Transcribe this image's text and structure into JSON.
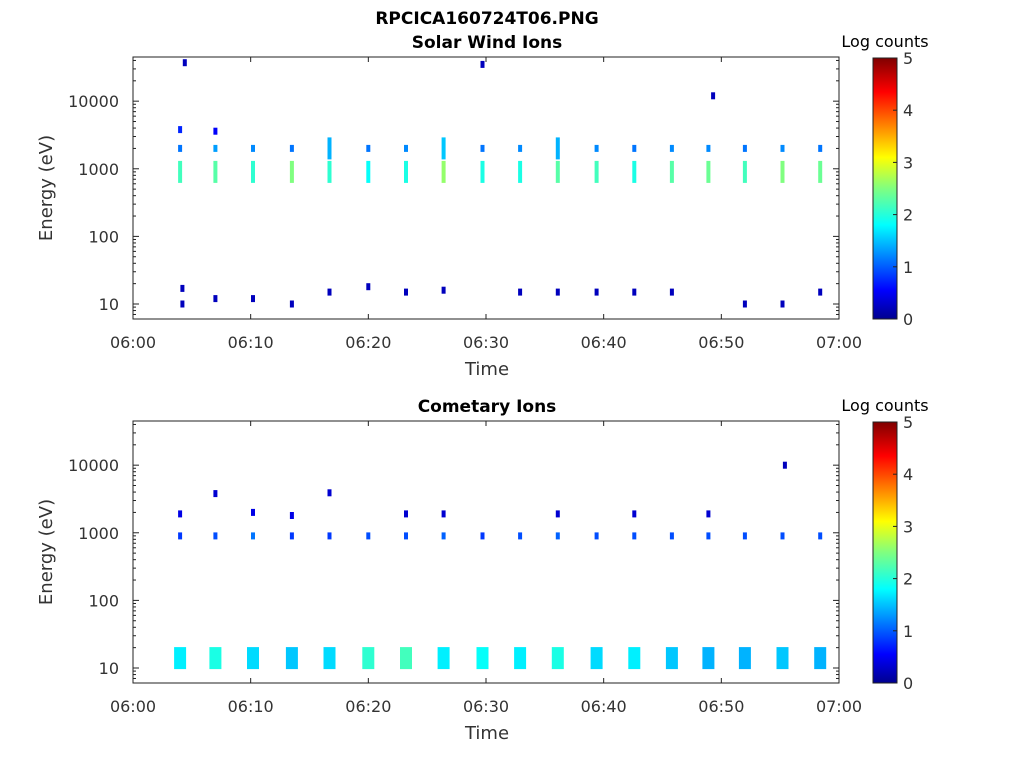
{
  "figure": {
    "title": "RPCICA160724T06.PNG"
  },
  "chart_data": [
    {
      "type": "heatmap",
      "title": "Solar Wind Ions",
      "xlabel": "Time",
      "ylabel": "Energy (eV)",
      "yscale": "log",
      "ylim": [
        6,
        45000
      ],
      "xlim": [
        "06:00",
        "07:00"
      ],
      "xticks": [
        "06:00",
        "06:10",
        "06:20",
        "06:30",
        "06:40",
        "06:50",
        "07:00"
      ],
      "yticks": [
        "10",
        "100",
        "1000",
        "10000"
      ],
      "colorbar": {
        "label": "Log counts",
        "range": [
          0,
          5
        ],
        "ticks": [
          "0",
          "1",
          "2",
          "3",
          "4",
          "5"
        ],
        "colormap": "jet"
      },
      "grid": false,
      "cells": [
        {
          "t": 4.0,
          "e": 900,
          "v": 2.2
        },
        {
          "t": 4.0,
          "e": 2000,
          "v": 1.2
        },
        {
          "t": 4.0,
          "e": 3800,
          "v": 0.8
        },
        {
          "t": 4.2,
          "e": 10,
          "v": 0.3
        },
        {
          "t": 4.2,
          "e": 17,
          "v": 0.3
        },
        {
          "t": 4.4,
          "e": 37000,
          "v": 0.3
        },
        {
          "t": 7.0,
          "e": 900,
          "v": 2.3
        },
        {
          "t": 7.0,
          "e": 2000,
          "v": 1.4
        },
        {
          "t": 7.0,
          "e": 3600,
          "v": 0.6
        },
        {
          "t": 7.0,
          "e": 12,
          "v": 0.3
        },
        {
          "t": 10.2,
          "e": 900,
          "v": 2.1
        },
        {
          "t": 10.2,
          "e": 2000,
          "v": 1.3
        },
        {
          "t": 10.2,
          "e": 12,
          "v": 0.3
        },
        {
          "t": 13.5,
          "e": 900,
          "v": 2.5
        },
        {
          "t": 13.5,
          "e": 2000,
          "v": 1.2
        },
        {
          "t": 13.5,
          "e": 10,
          "v": 0.3
        },
        {
          "t": 16.7,
          "e": 900,
          "v": 2.1
        },
        {
          "t": 16.7,
          "e": 2000,
          "v": 1.5
        },
        {
          "t": 16.7,
          "e": 15,
          "v": 0.3
        },
        {
          "t": 20.0,
          "e": 900,
          "v": 1.9
        },
        {
          "t": 20.0,
          "e": 2000,
          "v": 1.2
        },
        {
          "t": 20.0,
          "e": 18,
          "v": 0.3
        },
        {
          "t": 23.2,
          "e": 900,
          "v": 2.0
        },
        {
          "t": 23.2,
          "e": 2000,
          "v": 1.3
        },
        {
          "t": 23.2,
          "e": 15,
          "v": 0.3
        },
        {
          "t": 26.4,
          "e": 900,
          "v": 2.6
        },
        {
          "t": 26.4,
          "e": 2000,
          "v": 1.6
        },
        {
          "t": 26.4,
          "e": 16,
          "v": 0.3
        },
        {
          "t": 29.7,
          "e": 900,
          "v": 2.0
        },
        {
          "t": 29.7,
          "e": 2000,
          "v": 1.2
        },
        {
          "t": 29.7,
          "e": 35000,
          "v": 0.3
        },
        {
          "t": 32.9,
          "e": 900,
          "v": 2.0
        },
        {
          "t": 32.9,
          "e": 2000,
          "v": 1.3
        },
        {
          "t": 32.9,
          "e": 15,
          "v": 0.3
        },
        {
          "t": 36.1,
          "e": 900,
          "v": 2.3
        },
        {
          "t": 36.1,
          "e": 2000,
          "v": 1.5
        },
        {
          "t": 36.1,
          "e": 15,
          "v": 0.3
        },
        {
          "t": 39.4,
          "e": 900,
          "v": 2.2
        },
        {
          "t": 39.4,
          "e": 2000,
          "v": 1.3
        },
        {
          "t": 39.4,
          "e": 15,
          "v": 0.3
        },
        {
          "t": 42.6,
          "e": 900,
          "v": 2.0
        },
        {
          "t": 42.6,
          "e": 2000,
          "v": 1.2
        },
        {
          "t": 42.6,
          "e": 15,
          "v": 0.3
        },
        {
          "t": 45.8,
          "e": 900,
          "v": 2.3
        },
        {
          "t": 45.8,
          "e": 2000,
          "v": 1.3
        },
        {
          "t": 45.8,
          "e": 15,
          "v": 0.3
        },
        {
          "t": 48.9,
          "e": 900,
          "v": 2.4
        },
        {
          "t": 48.9,
          "e": 2000,
          "v": 1.3
        },
        {
          "t": 49.3,
          "e": 12000,
          "v": 0.3
        },
        {
          "t": 52.0,
          "e": 900,
          "v": 2.2
        },
        {
          "t": 52.0,
          "e": 2000,
          "v": 1.2
        },
        {
          "t": 52.0,
          "e": 10,
          "v": 0.3
        },
        {
          "t": 55.2,
          "e": 900,
          "v": 2.5
        },
        {
          "t": 55.2,
          "e": 2000,
          "v": 1.3
        },
        {
          "t": 55.2,
          "e": 10,
          "v": 0.3
        },
        {
          "t": 58.4,
          "e": 900,
          "v": 2.4
        },
        {
          "t": 58.4,
          "e": 2000,
          "v": 1.2
        },
        {
          "t": 58.4,
          "e": 15,
          "v": 0.3
        }
      ]
    },
    {
      "type": "heatmap",
      "title": "Cometary Ions",
      "xlabel": "Time",
      "ylabel": "Energy (eV)",
      "yscale": "log",
      "ylim": [
        6,
        45000
      ],
      "xlim": [
        "06:00",
        "07:00"
      ],
      "xticks": [
        "06:00",
        "06:10",
        "06:20",
        "06:30",
        "06:40",
        "06:50",
        "07:00"
      ],
      "yticks": [
        "10",
        "100",
        "1000",
        "10000"
      ],
      "colorbar": {
        "label": "Log counts",
        "range": [
          0,
          5
        ],
        "ticks": [
          "0",
          "1",
          "2",
          "3",
          "4",
          "5"
        ],
        "colormap": "jet"
      },
      "grid": false,
      "cells": [
        {
          "t": 4.0,
          "e": 900,
          "v": 0.9
        },
        {
          "t": 4.0,
          "e": 1900,
          "v": 0.5
        },
        {
          "t": 4.0,
          "e": 14,
          "v": 1.8
        },
        {
          "t": 7.0,
          "e": 900,
          "v": 1.0
        },
        {
          "t": 7.0,
          "e": 3800,
          "v": 0.4
        },
        {
          "t": 7.0,
          "e": 14,
          "v": 2.0
        },
        {
          "t": 10.2,
          "e": 900,
          "v": 1.2
        },
        {
          "t": 10.2,
          "e": 2000,
          "v": 0.5
        },
        {
          "t": 10.2,
          "e": 14,
          "v": 1.7
        },
        {
          "t": 13.5,
          "e": 900,
          "v": 0.9
        },
        {
          "t": 13.5,
          "e": 1800,
          "v": 0.5
        },
        {
          "t": 13.5,
          "e": 14,
          "v": 1.6
        },
        {
          "t": 16.7,
          "e": 900,
          "v": 0.9
        },
        {
          "t": 16.7,
          "e": 3900,
          "v": 0.4
        },
        {
          "t": 16.7,
          "e": 14,
          "v": 1.7
        },
        {
          "t": 20.0,
          "e": 900,
          "v": 1.0
        },
        {
          "t": 20.0,
          "e": 14,
          "v": 2.1
        },
        {
          "t": 23.2,
          "e": 900,
          "v": 1.0
        },
        {
          "t": 23.2,
          "e": 1900,
          "v": 0.4
        },
        {
          "t": 23.2,
          "e": 14,
          "v": 2.2
        },
        {
          "t": 26.4,
          "e": 900,
          "v": 1.1
        },
        {
          "t": 26.4,
          "e": 1900,
          "v": 0.4
        },
        {
          "t": 26.4,
          "e": 14,
          "v": 1.8
        },
        {
          "t": 29.7,
          "e": 900,
          "v": 0.9
        },
        {
          "t": 29.7,
          "e": 14,
          "v": 1.9
        },
        {
          "t": 32.9,
          "e": 900,
          "v": 1.0
        },
        {
          "t": 32.9,
          "e": 14,
          "v": 1.8
        },
        {
          "t": 36.1,
          "e": 900,
          "v": 1.1
        },
        {
          "t": 36.1,
          "e": 1900,
          "v": 0.4
        },
        {
          "t": 36.1,
          "e": 14,
          "v": 2.0
        },
        {
          "t": 39.4,
          "e": 900,
          "v": 1.0
        },
        {
          "t": 39.4,
          "e": 14,
          "v": 1.7
        },
        {
          "t": 42.6,
          "e": 900,
          "v": 1.0
        },
        {
          "t": 42.6,
          "e": 1900,
          "v": 0.4
        },
        {
          "t": 42.6,
          "e": 14,
          "v": 1.8
        },
        {
          "t": 45.8,
          "e": 900,
          "v": 1.0
        },
        {
          "t": 45.8,
          "e": 14,
          "v": 1.6
        },
        {
          "t": 48.9,
          "e": 900,
          "v": 1.0
        },
        {
          "t": 48.9,
          "e": 1900,
          "v": 0.4
        },
        {
          "t": 48.9,
          "e": 14,
          "v": 1.5
        },
        {
          "t": 52.0,
          "e": 900,
          "v": 1.0
        },
        {
          "t": 52.0,
          "e": 14,
          "v": 1.5
        },
        {
          "t": 55.2,
          "e": 900,
          "v": 1.0
        },
        {
          "t": 55.4,
          "e": 10000,
          "v": 0.3
        },
        {
          "t": 55.2,
          "e": 14,
          "v": 1.6
        },
        {
          "t": 58.4,
          "e": 900,
          "v": 1.0
        },
        {
          "t": 58.4,
          "e": 14,
          "v": 1.5
        }
      ]
    }
  ]
}
